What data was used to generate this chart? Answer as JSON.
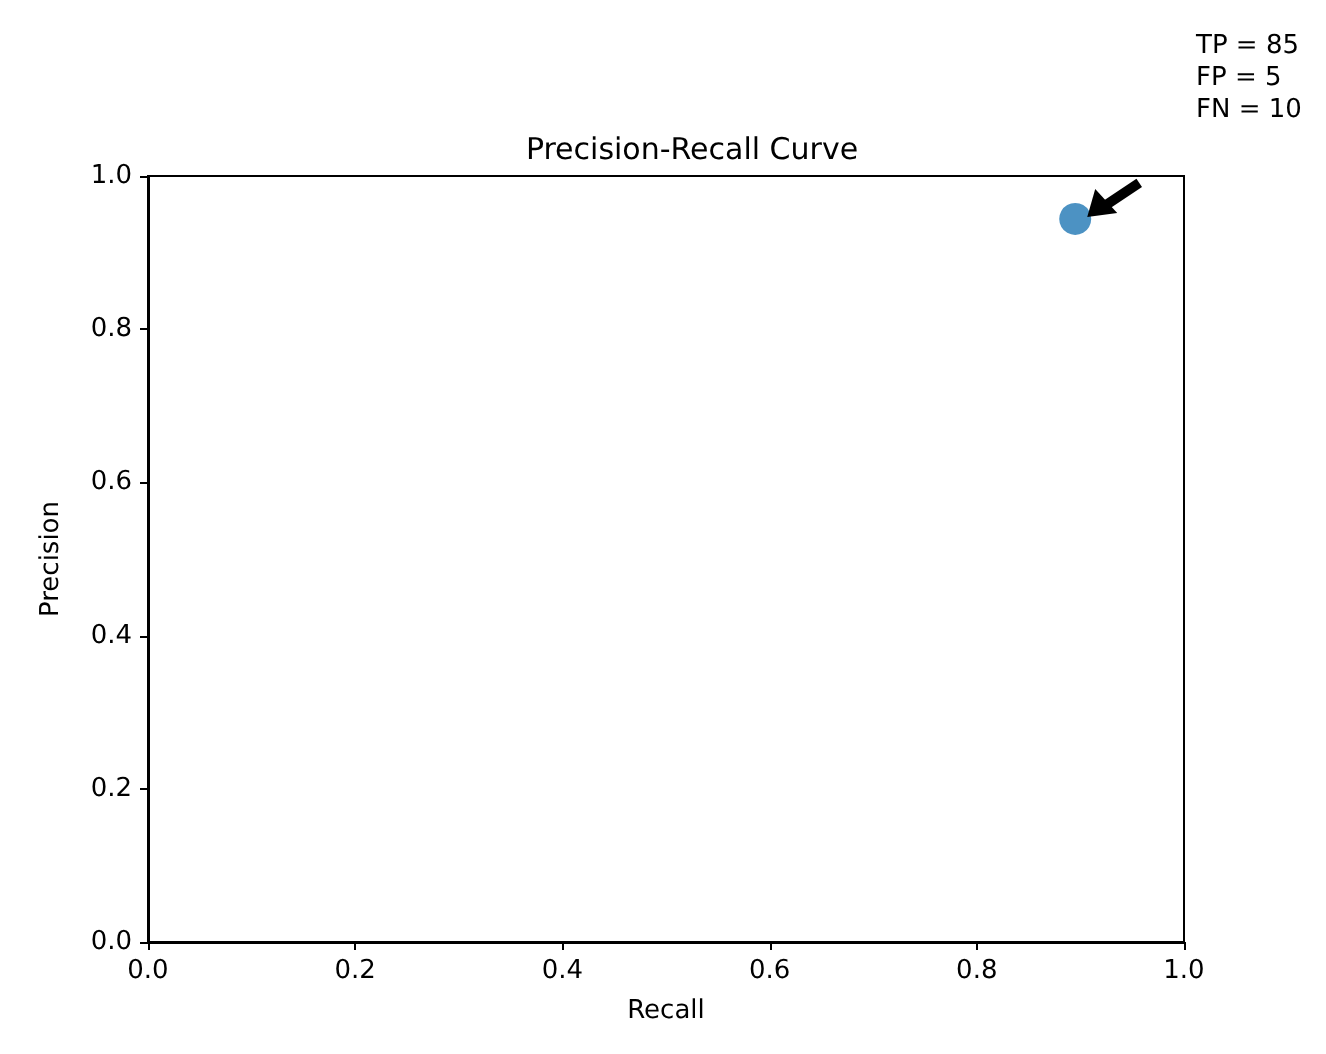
{
  "chart_data": {
    "type": "scatter",
    "title": "Precision-Recall Curve",
    "xlabel": "Recall",
    "ylabel": "Precision",
    "x": [
      0.895
    ],
    "values": [
      0.944
    ],
    "color": "#1f77b4",
    "marker": "circle",
    "grid": false,
    "xlim": [
      0,
      1
    ],
    "ylim": [
      0,
      1
    ],
    "xticks": [
      {
        "value": 0,
        "label": "0.0"
      },
      {
        "value": 0.2,
        "label": "0.2"
      },
      {
        "value": 0.4,
        "label": "0.4"
      },
      {
        "value": 0.6,
        "label": "0.6"
      },
      {
        "value": 0.8,
        "label": "0.8"
      },
      {
        "value": 1,
        "label": "1.0"
      }
    ],
    "yticks": [
      {
        "value": 0,
        "label": "0.0"
      },
      {
        "value": 0.2,
        "label": "0.2"
      },
      {
        "value": 0.4,
        "label": "0.4"
      },
      {
        "value": 0.6,
        "label": "0.6"
      },
      {
        "value": 0.8,
        "label": "0.8"
      },
      {
        "value": 1,
        "label": "1.0"
      }
    ],
    "annotations": [
      "TP = 85\nFP = 5\nFN = 10"
    ]
  }
}
